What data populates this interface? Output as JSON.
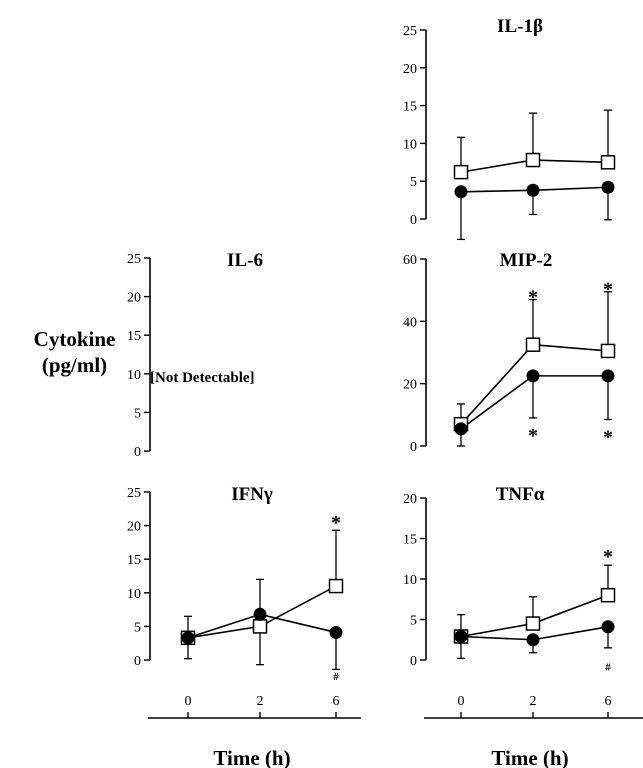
{
  "figure": {
    "y_label_line1": "Cytokine",
    "y_label_line2": "(pg/ml)",
    "not_detectable_note": "[Not Detectable]",
    "x_label": "Time (h)"
  },
  "chart_data": [
    {
      "id": "il1b",
      "type": "line",
      "title": "IL-1β",
      "x": [
        0,
        2,
        6
      ],
      "ylim": [
        0,
        25
      ],
      "yticks": [
        0,
        5,
        10,
        15,
        20,
        25
      ],
      "series": [
        {
          "marker": "open-square",
          "values": [
            6.2,
            7.8,
            7.5
          ],
          "err_up": [
            4.6,
            6.2,
            6.9
          ],
          "err_down": [
            0,
            0,
            0
          ]
        },
        {
          "marker": "filled-circle",
          "values": [
            3.6,
            3.8,
            4.2
          ],
          "err_up": [
            0,
            0,
            0
          ],
          "err_down": [
            6.3,
            3.2,
            4.3
          ]
        }
      ],
      "annotations": []
    },
    {
      "id": "il6",
      "type": "line",
      "title": "IL-6",
      "x": [
        0,
        2,
        6
      ],
      "ylim": [
        0,
        25
      ],
      "yticks": [
        0,
        5,
        10,
        15,
        20,
        25
      ],
      "series": [],
      "annotations": []
    },
    {
      "id": "mip2",
      "type": "line",
      "title": "MIP-2",
      "x": [
        0,
        2,
        6
      ],
      "ylim": [
        0,
        60
      ],
      "yticks": [
        0,
        20,
        40,
        60
      ],
      "series": [
        {
          "marker": "open-square",
          "values": [
            7,
            32.5,
            30.5
          ],
          "err_up": [
            6.5,
            14.5,
            19
          ],
          "err_down": [
            0,
            0,
            0
          ]
        },
        {
          "marker": "filled-circle",
          "values": [
            5.5,
            22.5,
            22.5
          ],
          "err_up": [
            0,
            0,
            0
          ],
          "err_down": [
            5.5,
            13.5,
            14
          ]
        }
      ],
      "annotations": [
        {
          "text": "*",
          "x": 2,
          "y": 49
        },
        {
          "text": "*",
          "x": 6,
          "y": 51.5
        },
        {
          "text": "*",
          "x": 2,
          "y": 4.5
        },
        {
          "text": "*",
          "x": 6,
          "y": 4
        }
      ]
    },
    {
      "id": "ifng",
      "type": "line",
      "title": "IFNγ",
      "x": [
        0,
        2,
        6
      ],
      "ylim": [
        0,
        25
      ],
      "yticks": [
        0,
        5,
        10,
        15,
        20,
        25
      ],
      "series": [
        {
          "marker": "open-square",
          "values": [
            3.3,
            5,
            11
          ],
          "err_up": [
            3.2,
            7,
            8.3
          ],
          "err_down": [
            0,
            0,
            0
          ]
        },
        {
          "marker": "filled-circle",
          "values": [
            3.3,
            6.8,
            4.1
          ],
          "err_up": [
            0,
            0,
            0
          ],
          "err_down": [
            3.1,
            7.5,
            5.5
          ]
        }
      ],
      "annotations": [
        {
          "text": "*",
          "x": 6,
          "y": 21
        },
        {
          "text": "#",
          "x": 6,
          "y": -2.4
        }
      ]
    },
    {
      "id": "tnfa",
      "type": "line",
      "title": "TNFα",
      "x": [
        0,
        2,
        6
      ],
      "ylim": [
        0,
        20
      ],
      "yticks": [
        0,
        5,
        10,
        15,
        20
      ],
      "series": [
        {
          "marker": "open-square",
          "values": [
            2.9,
            4.5,
            8
          ],
          "err_up": [
            2.7,
            3.3,
            3.7
          ],
          "err_down": [
            0,
            0,
            0
          ]
        },
        {
          "marker": "filled-circle",
          "values": [
            2.9,
            2.5,
            4.1
          ],
          "err_up": [
            0,
            0,
            0
          ],
          "err_down": [
            2.7,
            1.6,
            2.6
          ]
        }
      ],
      "annotations": [
        {
          "text": "*",
          "x": 6,
          "y": 13.2
        },
        {
          "text": "#",
          "x": 6,
          "y": -0.8
        }
      ]
    }
  ],
  "x_axes": [
    {
      "ticks": [
        0,
        2,
        6
      ],
      "label": "Time (h)"
    },
    {
      "ticks": [
        0,
        2,
        6
      ],
      "label": "Time (h)"
    }
  ]
}
